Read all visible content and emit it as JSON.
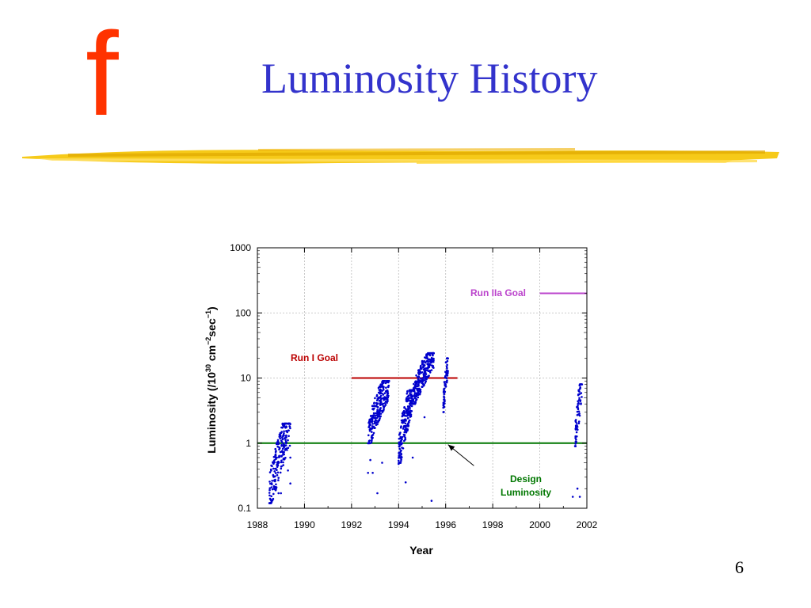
{
  "slide": {
    "logo": "f",
    "title": "Luminosity History",
    "page_number": "6"
  },
  "colors": {
    "logo": "#ff3300",
    "title": "#3333cc",
    "brush": "#f5c400",
    "points": "#0000cc",
    "design": "#007700",
    "run1": "#bb0000",
    "run2a": "#bb44cc"
  },
  "chart_data": {
    "type": "scatter",
    "title": "",
    "xlabel": "Year",
    "ylabel": "Luminosity (/10^30 cm^-2 sec^-1)",
    "ylabel_parts": {
      "base": "Luminosity (/10",
      "exp1": "30",
      "mid": " cm",
      "exp2": "−2",
      "mid2": "sec",
      "exp3": "−1",
      "end": ")"
    },
    "xlim": [
      1988,
      2002
    ],
    "ylim": [
      0.1,
      1000
    ],
    "yscale": "log",
    "grid": true,
    "x_ticks": [
      "1988",
      "1990",
      "1992",
      "1994",
      "1996",
      "1998",
      "2000",
      "2002"
    ],
    "y_ticks": [
      "0.1",
      "1",
      "10",
      "100",
      "1000"
    ],
    "reference_lines": [
      {
        "label": "Design Luminosity",
        "label_lines": [
          "Design",
          "Luminosity"
        ],
        "y": 1,
        "x": [
          1988,
          2002
        ],
        "color": "#007700"
      },
      {
        "label": "Run I Goal",
        "y": 10,
        "x": [
          1992,
          1996.5
        ],
        "color": "#bb0000"
      },
      {
        "label": "Run IIa Goal",
        "y": 200,
        "x": [
          2000,
          2002
        ],
        "color": "#bb44cc"
      }
    ],
    "arrow": {
      "from": [
        1997.2,
        0.45
      ],
      "to": [
        1996.1,
        0.95
      ]
    },
    "clusters": [
      {
        "x": [
          1988.5,
          1989.4
        ],
        "y": [
          0.12,
          2.0
        ],
        "n": 220
      },
      {
        "x": [
          1992.7,
          1993.6
        ],
        "y": [
          1.0,
          9.0
        ],
        "n": 260
      },
      {
        "x": [
          1994.0,
          1994.6
        ],
        "y": [
          0.5,
          6.5
        ],
        "n": 220
      },
      {
        "x": [
          1994.6,
          1995.5
        ],
        "y": [
          4.0,
          24.0
        ],
        "n": 260
      },
      {
        "x": [
          1995.9,
          1996.1
        ],
        "y": [
          3.0,
          20.0
        ],
        "n": 70
      },
      {
        "x": [
          2001.5,
          2001.8
        ],
        "y": [
          0.9,
          8.0
        ],
        "n": 70
      }
    ],
    "outliers": [
      {
        "x": 1988.9,
        "y": 0.17
      },
      {
        "x": 1989.0,
        "y": 0.17
      },
      {
        "x": 1989.4,
        "y": 0.24
      },
      {
        "x": 1989.4,
        "y": 0.6
      },
      {
        "x": 1989.3,
        "y": 0.38
      },
      {
        "x": 1992.7,
        "y": 0.35
      },
      {
        "x": 1992.9,
        "y": 0.35
      },
      {
        "x": 1992.8,
        "y": 0.55
      },
      {
        "x": 1993.1,
        "y": 0.17
      },
      {
        "x": 1993.3,
        "y": 0.5
      },
      {
        "x": 1994.0,
        "y": 0.48
      },
      {
        "x": 1994.1,
        "y": 0.6
      },
      {
        "x": 1994.3,
        "y": 0.25
      },
      {
        "x": 1994.6,
        "y": 0.6
      },
      {
        "x": 1995.4,
        "y": 0.13
      },
      {
        "x": 1995.9,
        "y": 3.5
      },
      {
        "x": 1995.1,
        "y": 2.5
      },
      {
        "x": 2001.4,
        "y": 0.15
      },
      {
        "x": 2001.6,
        "y": 0.2
      },
      {
        "x": 2001.7,
        "y": 0.15
      }
    ]
  }
}
